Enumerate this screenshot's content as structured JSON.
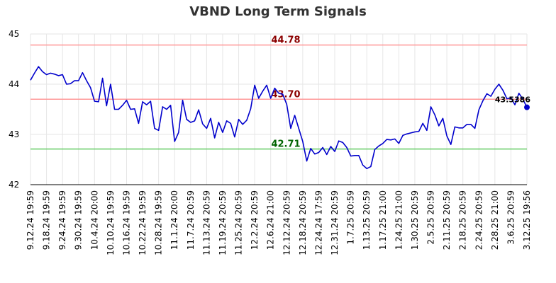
{
  "chart_data": {
    "type": "line",
    "title": "VBND Long Term Signals",
    "xlabel": "",
    "ylabel": "",
    "ylim": [
      42,
      45
    ],
    "yticks": [
      42,
      43,
      44,
      45
    ],
    "grid": true,
    "x_tick_labels": [
      "9.12.24 19:59",
      "9.18.24 19:59",
      "9.24.24 19:59",
      "9.30.24 19:59",
      "10.4.24 20:00",
      "10.10.24 19:59",
      "10.16.24 19:59",
      "10.22.24 19:59",
      "10.28.24 19:59",
      "11.1.24 20:00",
      "11.7.24 20:59",
      "11.13.24 20:59",
      "11.19.24 20:59",
      "11.25.24 20:59",
      "12.2.24 20:59",
      "12.6.24 21:00",
      "12.12.24 20:59",
      "12.18.24 20:59",
      "12.24.24 17:59",
      "12.31.24 20:59",
      "1.7.25 20:59",
      "1.13.25 20:59",
      "1.17.25 21:00",
      "1.24.25 21:00",
      "1.30.25 20:59",
      "2.5.25 20:59",
      "2.11.25 20:59",
      "2.18.25 20:59",
      "2.24.25 20:59",
      "2.28.25 21:00",
      "3.6.25 20:59",
      "3.12.25 19:56"
    ],
    "series": [
      {
        "color": "#0000cc",
        "values": [
          44.08,
          44.22,
          44.35,
          44.25,
          44.19,
          44.22,
          44.2,
          44.17,
          44.19,
          44.0,
          44.01,
          44.07,
          44.07,
          44.23,
          44.07,
          43.93,
          43.66,
          43.65,
          44.12,
          43.57,
          44.0,
          43.5,
          43.5,
          43.58,
          43.68,
          43.5,
          43.51,
          43.22,
          43.65,
          43.59,
          43.66,
          43.12,
          43.08,
          43.55,
          43.5,
          43.58,
          42.86,
          43.04,
          43.68,
          43.3,
          43.24,
          43.27,
          43.49,
          43.21,
          43.12,
          43.32,
          42.93,
          43.24,
          43.04,
          43.27,
          43.22,
          42.95,
          43.3,
          43.2,
          43.28,
          43.51,
          43.98,
          43.72,
          43.86,
          43.98,
          43.72,
          43.92,
          43.82,
          43.8,
          43.6,
          43.12,
          43.38,
          43.12,
          42.86,
          42.47,
          42.72,
          42.61,
          42.64,
          42.74,
          42.6,
          42.76,
          42.66,
          42.87,
          42.84,
          42.74,
          42.57,
          42.58,
          42.58,
          42.39,
          42.32,
          42.36,
          42.7,
          42.77,
          42.82,
          42.9,
          42.89,
          42.91,
          42.82,
          42.98,
          43.01,
          43.03,
          43.05,
          43.06,
          43.22,
          43.08,
          43.55,
          43.39,
          43.17,
          43.32,
          42.97,
          42.8,
          43.15,
          43.13,
          43.13,
          43.2,
          43.2,
          43.12,
          43.49,
          43.67,
          43.81,
          43.76,
          43.9,
          44.0,
          43.88,
          43.71,
          43.73,
          43.59,
          43.82,
          43.7,
          43.54
        ]
      }
    ],
    "reference_lines": [
      {
        "value": 44.78,
        "label": "44.78",
        "color": "#ff9999",
        "label_color": "#8b0000"
      },
      {
        "value": 43.7,
        "label": "43.70",
        "color": "#ff9999",
        "label_color": "#8b0000"
      },
      {
        "value": 42.71,
        "label": "42.71",
        "color": "#66cc66",
        "label_color": "#006400"
      }
    ],
    "last_value_label": "43.5386"
  }
}
